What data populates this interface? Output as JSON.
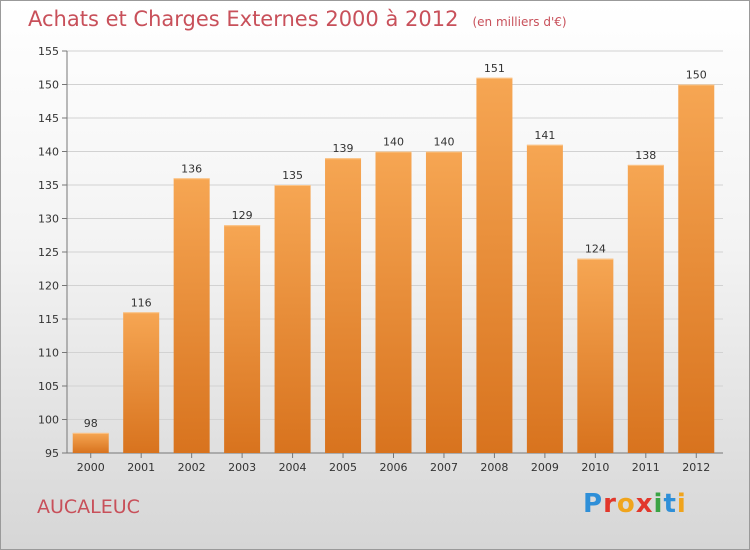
{
  "header": {
    "title": "Achats et Charges Externes 2000 à 2012",
    "subtitle": "(en milliers d'€)"
  },
  "footer": {
    "city": "AUCALEUC",
    "logo": "Proxiti"
  },
  "colors": {
    "accent": "#c8505a",
    "bar_top": "#f6a653",
    "bar_bottom": "#d8731e",
    "logo_letters": [
      "#2e8fd8",
      "#e2372b",
      "#f0a41c",
      "#e2372b",
      "#3aa344",
      "#2e8fd8",
      "#f0a41c"
    ]
  },
  "chart_data": {
    "type": "bar",
    "categories": [
      "2000",
      "2001",
      "2002",
      "2003",
      "2004",
      "2005",
      "2006",
      "2007",
      "2008",
      "2009",
      "2010",
      "2011",
      "2012"
    ],
    "values": [
      98,
      116,
      136,
      129,
      135,
      139,
      140,
      140,
      151,
      141,
      124,
      138,
      150
    ],
    "title": "Achats et Charges Externes 2000 à 2012",
    "subtitle": "(en milliers d'€)",
    "xlabel": "",
    "ylabel": "",
    "ylim": [
      95,
      155
    ],
    "yticks": [
      95,
      100,
      105,
      110,
      115,
      120,
      125,
      130,
      135,
      140,
      145,
      150,
      155
    ],
    "grid": true,
    "data_labels": true
  }
}
